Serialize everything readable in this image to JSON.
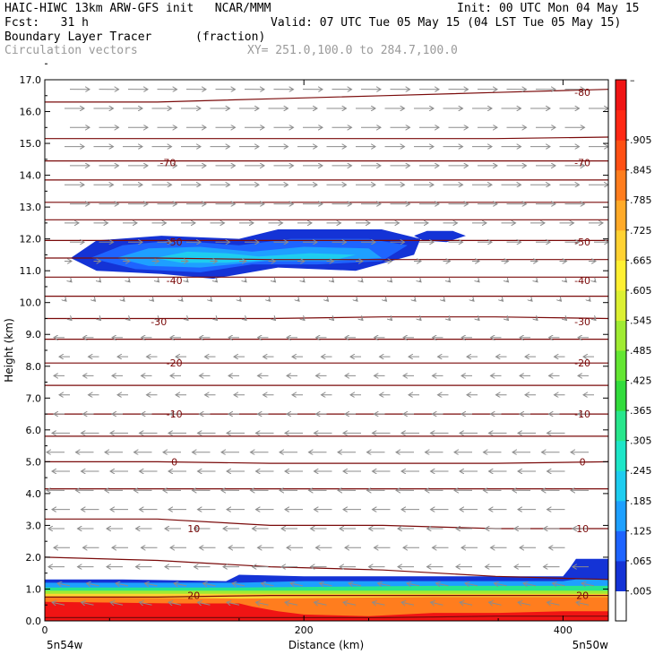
{
  "header": {
    "line1_left": "HAIC-HIWC 13km ARW-GFS init   NCAR/MMM",
    "line1_right": "Init: 00 UTC Mon 04 May 15",
    "line2_left": "Fcst:   31 h",
    "line2_right": "Valid: 07 UTC Tue 05 May 15 (04 LST Tue 05 May 15)",
    "line3_left": "Boundary Layer Tracer",
    "line3_mid": "(fraction)",
    "line4_left": "Circulation vectors",
    "line4_right": "XY= 251.0,100.0 to 284.7,100.0"
  },
  "colors": {
    "contour": "#7a0a0a",
    "vector": "#8c8c8c",
    "tracer_scale": [
      "#ffffff",
      "#1433d6",
      "#1e64ff",
      "#1ea0ff",
      "#1ecdf0",
      "#1ee6c8",
      "#28e68c",
      "#32dc3c",
      "#64e632",
      "#a0eb32",
      "#dcf032",
      "#fff032",
      "#ffd232",
      "#ffaa28",
      "#ff7d1e",
      "#ff5014",
      "#ff2814",
      "#f01414"
    ]
  },
  "chart_data": {
    "type": "cross-section",
    "ylabel": "Height (km)",
    "xlabel": "Distance (km)",
    "xlim": [
      0,
      435
    ],
    "ylim": [
      0,
      17
    ],
    "x_ticks": [
      0,
      200,
      400
    ],
    "y_ticks": [
      "0.0",
      "1.0",
      "2.0",
      "3.0",
      "4.0",
      "5.0",
      "6.0",
      "7.0",
      "8.0",
      "9.0",
      "10.0",
      "11.0",
      "12.0",
      "13.0",
      "14.0",
      "15.0",
      "16.0",
      "17.0"
    ],
    "x_end_labels": [
      "5n54w",
      "5n50w"
    ],
    "colorbar": {
      "labels": [
        ".005",
        ".065",
        ".125",
        ".185",
        ".245",
        ".305",
        ".365",
        ".425",
        ".485",
        ".545",
        ".605",
        ".665",
        ".725",
        ".785",
        ".845",
        ".905"
      ],
      "top_label": "–"
    },
    "contour_labels": [
      {
        "text": "-80",
        "x": 415,
        "y": 16.6
      },
      {
        "text": "-70",
        "x": 95,
        "y": 14.4
      },
      {
        "text": "-70",
        "x": 415,
        "y": 14.4
      },
      {
        "text": "-50",
        "x": 100,
        "y": 11.9
      },
      {
        "text": "-50",
        "x": 415,
        "y": 11.9
      },
      {
        "text": "-40",
        "x": 100,
        "y": 10.7
      },
      {
        "text": "-40",
        "x": 415,
        "y": 10.7
      },
      {
        "text": "-30",
        "x": 88,
        "y": 9.4
      },
      {
        "text": "-30",
        "x": 415,
        "y": 9.4
      },
      {
        "text": "-20",
        "x": 100,
        "y": 8.1
      },
      {
        "text": "-20",
        "x": 415,
        "y": 8.1
      },
      {
        "text": "-10",
        "x": 100,
        "y": 6.5
      },
      {
        "text": "-10",
        "x": 415,
        "y": 6.5
      },
      {
        "text": "0",
        "x": 100,
        "y": 5.0
      },
      {
        "text": "0",
        "x": 415,
        "y": 5.0
      },
      {
        "text": "10",
        "x": 115,
        "y": 2.9
      },
      {
        "text": "10",
        "x": 415,
        "y": 2.9
      },
      {
        "text": "20",
        "x": 115,
        "y": 0.8
      },
      {
        "text": "20",
        "x": 415,
        "y": 0.8
      }
    ],
    "contours": [
      {
        "y": [
          16.3,
          16.3,
          16.4,
          16.5,
          16.6,
          16.7
        ]
      },
      {
        "y": [
          15.15,
          15.15,
          15.15,
          15.15,
          15.15,
          15.2
        ]
      },
      {
        "y": [
          14.45,
          14.45,
          14.45,
          14.45,
          14.45,
          14.45
        ]
      },
      {
        "y": [
          13.85,
          13.85,
          13.85,
          13.85,
          13.85,
          13.85
        ]
      },
      {
        "y": [
          13.15,
          13.15,
          13.15,
          13.15,
          13.15,
          13.15
        ]
      },
      {
        "y": [
          12.6,
          12.6,
          12.6,
          12.6,
          12.6,
          12.6
        ]
      },
      {
        "y": [
          11.95,
          11.95,
          11.95,
          11.95,
          11.95,
          11.95
        ]
      },
      {
        "y": [
          11.4,
          11.4,
          11.35,
          11.35,
          11.35,
          11.35
        ]
      },
      {
        "y": [
          10.8,
          10.8,
          10.8,
          10.8,
          10.8,
          10.8
        ]
      },
      {
        "y": [
          10.2,
          10.2,
          10.2,
          10.2,
          10.2,
          10.2
        ]
      },
      {
        "y": [
          9.5,
          9.5,
          9.5,
          9.55,
          9.55,
          9.5
        ]
      },
      {
        "y": [
          8.85,
          8.85,
          8.85,
          8.85,
          8.85,
          8.85
        ]
      },
      {
        "y": [
          8.1,
          8.1,
          8.1,
          8.1,
          8.1,
          8.1
        ]
      },
      {
        "y": [
          7.4,
          7.4,
          7.4,
          7.4,
          7.4,
          7.4
        ]
      },
      {
        "y": [
          6.5,
          6.5,
          6.5,
          6.5,
          6.5,
          6.5
        ]
      },
      {
        "y": [
          5.8,
          5.8,
          5.8,
          5.8,
          5.8,
          5.8
        ]
      },
      {
        "y": [
          5.0,
          5.0,
          4.95,
          4.95,
          4.95,
          5.0
        ]
      },
      {
        "y": [
          4.15,
          4.15,
          4.15,
          4.15,
          4.15,
          4.15
        ]
      },
      {
        "y": [
          3.2,
          3.2,
          3.0,
          3.0,
          2.9,
          2.9
        ]
      },
      {
        "y": [
          2.0,
          1.9,
          1.7,
          1.6,
          1.4,
          1.3
        ]
      },
      {
        "y": [
          0.75,
          0.75,
          0.8,
          0.8,
          0.8,
          0.8
        ]
      },
      {
        "y": [
          0.1,
          0.1,
          0.1,
          0.1,
          0.15,
          0.15
        ]
      }
    ],
    "contour_x": [
      0,
      87,
      174,
      261,
      348,
      435
    ],
    "cloud_layers": [
      {
        "level": 1,
        "pts": [
          [
            20,
            11.4
          ],
          [
            40,
            11.95
          ],
          [
            90,
            12.1
          ],
          [
            150,
            12.0
          ],
          [
            180,
            12.3
          ],
          [
            260,
            12.3
          ],
          [
            290,
            12.0
          ],
          [
            285,
            11.5
          ],
          [
            240,
            11.0
          ],
          [
            180,
            11.1
          ],
          [
            130,
            10.75
          ],
          [
            90,
            10.9
          ],
          [
            40,
            11.0
          ]
        ]
      },
      {
        "level": 2,
        "pts": [
          [
            35,
            11.4
          ],
          [
            60,
            11.8
          ],
          [
            100,
            11.95
          ],
          [
            150,
            11.8
          ],
          [
            190,
            12.0
          ],
          [
            250,
            12.0
          ],
          [
            280,
            11.8
          ],
          [
            260,
            11.3
          ],
          [
            210,
            11.2
          ],
          [
            160,
            11.2
          ],
          [
            120,
            10.95
          ],
          [
            70,
            11.05
          ]
        ]
      },
      {
        "level": 3,
        "pts": [
          [
            55,
            11.4
          ],
          [
            80,
            11.7
          ],
          [
            120,
            11.75
          ],
          [
            160,
            11.6
          ],
          [
            200,
            11.75
          ],
          [
            250,
            11.7
          ],
          [
            260,
            11.4
          ],
          [
            220,
            11.3
          ],
          [
            170,
            11.3
          ],
          [
            120,
            11.1
          ],
          [
            80,
            11.15
          ]
        ]
      },
      {
        "level": 4,
        "pts": [
          [
            85,
            11.4
          ],
          [
            110,
            11.6
          ],
          [
            140,
            11.55
          ],
          [
            165,
            11.45
          ],
          [
            205,
            11.55
          ],
          [
            240,
            11.5
          ],
          [
            225,
            11.35
          ],
          [
            175,
            11.35
          ],
          [
            140,
            11.25
          ],
          [
            105,
            11.25
          ]
        ]
      },
      {
        "level": 1,
        "pts": [
          [
            285,
            12.1
          ],
          [
            295,
            12.25
          ],
          [
            315,
            12.25
          ],
          [
            325,
            12.1
          ],
          [
            310,
            11.9
          ],
          [
            292,
            11.95
          ]
        ]
      }
    ],
    "bl_layers": [
      {
        "level": 1,
        "pts": [
          [
            0,
            1.3
          ],
          [
            60,
            1.3
          ],
          [
            140,
            1.25
          ],
          [
            150,
            1.45
          ],
          [
            200,
            1.4
          ],
          [
            400,
            1.4
          ],
          [
            405,
            1.65
          ],
          [
            410,
            1.95
          ],
          [
            435,
            1.95
          ],
          [
            435,
            0
          ],
          [
            0,
            0
          ]
        ]
      },
      {
        "level": 3,
        "pts": [
          [
            0,
            1.2
          ],
          [
            100,
            1.2
          ],
          [
            150,
            1.2
          ],
          [
            200,
            1.25
          ],
          [
            400,
            1.25
          ],
          [
            410,
            1.3
          ],
          [
            435,
            1.3
          ],
          [
            435,
            0
          ],
          [
            0,
            0
          ]
        ]
      },
      {
        "level": 6,
        "pts": [
          [
            0,
            1.05
          ],
          [
            150,
            1.05
          ],
          [
            300,
            1.1
          ],
          [
            435,
            1.1
          ],
          [
            435,
            0
          ],
          [
            0,
            0
          ]
        ]
      },
      {
        "level": 9,
        "pts": [
          [
            0,
            0.95
          ],
          [
            150,
            0.95
          ],
          [
            300,
            0.95
          ],
          [
            435,
            0.95
          ],
          [
            435,
            0
          ],
          [
            0,
            0
          ]
        ]
      },
      {
        "level": 12,
        "pts": [
          [
            0,
            0.85
          ],
          [
            435,
            0.85
          ],
          [
            435,
            0
          ],
          [
            0,
            0
          ]
        ]
      },
      {
        "level": 14,
        "pts": [
          [
            0,
            0.75
          ],
          [
            150,
            0.7
          ],
          [
            300,
            0.75
          ],
          [
            435,
            0.75
          ],
          [
            435,
            0
          ],
          [
            0,
            0
          ]
        ]
      },
      {
        "level": 17,
        "pts": [
          [
            0,
            0.6
          ],
          [
            100,
            0.55
          ],
          [
            150,
            0.55
          ],
          [
            160,
            0.45
          ],
          [
            180,
            0.3
          ],
          [
            200,
            0.2
          ],
          [
            250,
            0.15
          ],
          [
            300,
            0.25
          ],
          [
            350,
            0.25
          ],
          [
            400,
            0.3
          ],
          [
            435,
            0.3
          ],
          [
            435,
            0
          ],
          [
            0,
            0
          ]
        ]
      }
    ]
  }
}
